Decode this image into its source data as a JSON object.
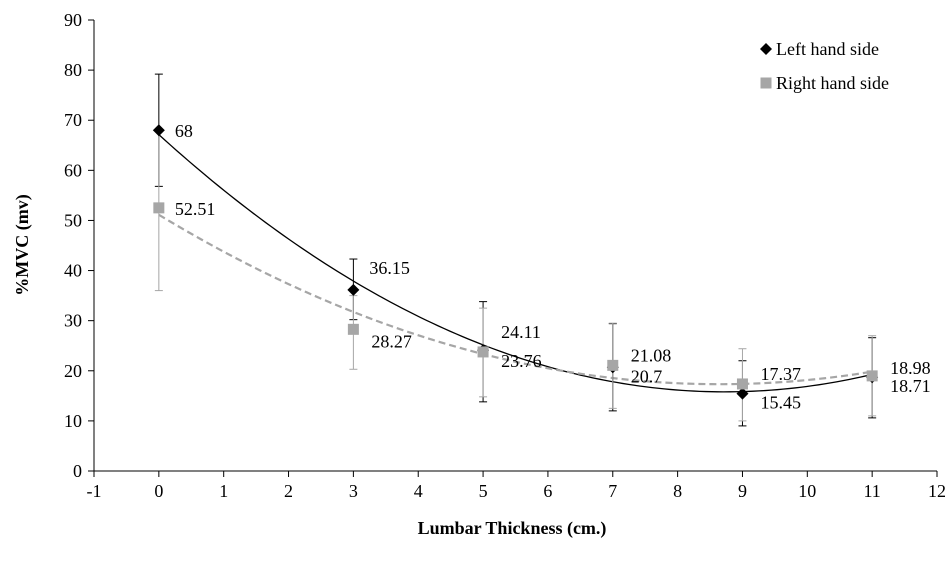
{
  "chart_data": {
    "type": "scatter",
    "xlabel": "Lumbar  Thickness (cm.)",
    "ylabel": "%MVC (mv)",
    "xlim": [
      -1,
      12
    ],
    "ylim": [
      0,
      90
    ],
    "xticks": [
      "-1",
      "0",
      "1",
      "2",
      "3",
      "4",
      "5",
      "6",
      "7",
      "8",
      "9",
      "10",
      "11",
      "12"
    ],
    "yticks": [
      "0",
      "10",
      "20",
      "30",
      "40",
      "50",
      "60",
      "70",
      "80",
      "90"
    ],
    "grid": false,
    "legend_position": "top-right",
    "series": [
      {
        "name": "Left hand side",
        "color": "#000000",
        "marker": "diamond",
        "trendline": "polynomial-2",
        "trendline_style": "solid",
        "points": [
          {
            "x": 0,
            "y": 68,
            "label": "68",
            "err_low": 56.8,
            "err_high": 79.2
          },
          {
            "x": 3,
            "y": 36.15,
            "label": "36.15",
            "err_low": 30.2,
            "err_high": 42.3
          },
          {
            "x": 5,
            "y": 24.11,
            "label": "24.11",
            "err_low": 13.8,
            "err_high": 33.8
          },
          {
            "x": 7,
            "y": 20.7,
            "label": "20.7",
            "err_low": 12.0,
            "err_high": 29.4
          },
          {
            "x": 9,
            "y": 15.45,
            "label": "15.45",
            "err_low": 9.0,
            "err_high": 22.0
          },
          {
            "x": 11,
            "y": 18.71,
            "label": "18.71",
            "err_low": 10.6,
            "err_high": 26.6
          }
        ]
      },
      {
        "name": "Right hand side",
        "color": "#a6a6a6",
        "marker": "square",
        "trendline": "polynomial-2",
        "trendline_style": "dashed",
        "points": [
          {
            "x": 0,
            "y": 52.51,
            "label": "52.51",
            "err_low": 36.0,
            "err_high": 68.0
          },
          {
            "x": 3,
            "y": 28.27,
            "label": "28.27",
            "err_low": 20.3,
            "err_high": 35.0
          },
          {
            "x": 5,
            "y": 23.76,
            "label": "23.76",
            "err_low": 14.8,
            "err_high": 32.5
          },
          {
            "x": 7,
            "y": 21.08,
            "label": "21.08",
            "err_low": 12.5,
            "err_high": 29.5
          },
          {
            "x": 9,
            "y": 17.37,
            "label": "17.37",
            "err_low": 10.0,
            "err_high": 24.4
          },
          {
            "x": 11,
            "y": 18.98,
            "label": "18.98",
            "err_low": 11.0,
            "err_high": 27.0
          }
        ]
      }
    ]
  }
}
